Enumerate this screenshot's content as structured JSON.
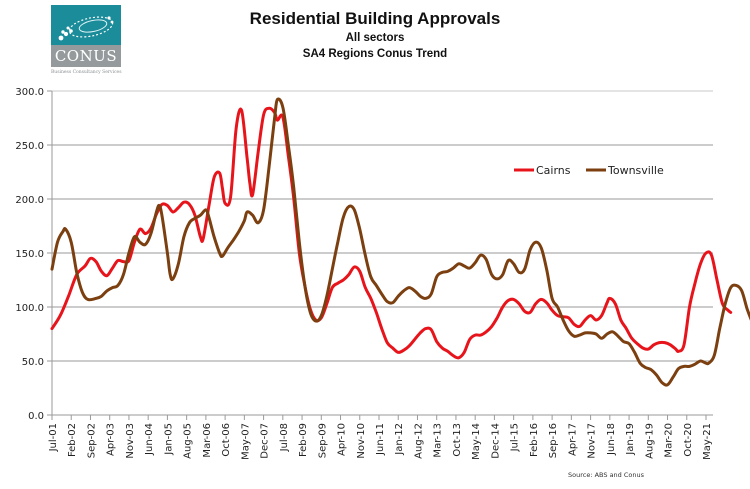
{
  "logo": {
    "word": "CONUS",
    "tagline": "Business Consultancy Services",
    "colors": {
      "top": "#1b8c9a",
      "bottom": "#959a9c"
    }
  },
  "chart_data": {
    "type": "line",
    "title": "Residential Building Approvals",
    "subtitles": [
      "All sectors",
      "SA4 Regions Conus Trend"
    ],
    "xlabel": "",
    "ylabel": "",
    "ylim": [
      0,
      300
    ],
    "yticks": [
      "0.0",
      "50.0",
      "100.0",
      "150.0",
      "200.0",
      "250.0",
      "300.0"
    ],
    "ytick_values": [
      0,
      50,
      100,
      150,
      200,
      250,
      300
    ],
    "xtick_labels": [
      "Jul-01",
      "Feb-02",
      "Sep-02",
      "Apr-03",
      "Nov-03",
      "Jun-04",
      "Jan-05",
      "Aug-05",
      "Mar-06",
      "Oct-06",
      "May-07",
      "Dec-07",
      "Jul-08",
      "Feb-09",
      "Sep-09",
      "Apr-10",
      "Nov-10",
      "Jun-11",
      "Jan-12",
      "Aug-12",
      "Mar-13",
      "Oct-13",
      "May-14",
      "Dec-14",
      "Jul-15",
      "Feb-16",
      "Sep-16",
      "Apr-17",
      "Nov-17",
      "Jun-18",
      "Jan-19",
      "Aug-19",
      "Mar-20",
      "Oct-20",
      "May-21"
    ],
    "x_unit": "months since Jul-01",
    "xlim": [
      0,
      240
    ],
    "grid": "horizontal",
    "legend_position": "top-right",
    "source": "Source: ABS and Conus",
    "series": [
      {
        "name": "Cairns",
        "color": "#e8141b",
        "points": [
          [
            0,
            80
          ],
          [
            3,
            92
          ],
          [
            6,
            110
          ],
          [
            9,
            130
          ],
          [
            12,
            138
          ],
          [
            14,
            145
          ],
          [
            16,
            142
          ],
          [
            18,
            133
          ],
          [
            20,
            129
          ],
          [
            22,
            136
          ],
          [
            24,
            143
          ],
          [
            26,
            142
          ],
          [
            28,
            143
          ],
          [
            30,
            160
          ],
          [
            32,
            172
          ],
          [
            34,
            168
          ],
          [
            36,
            173
          ],
          [
            38,
            186
          ],
          [
            40,
            195
          ],
          [
            42,
            194
          ],
          [
            44,
            188
          ],
          [
            46,
            192
          ],
          [
            48,
            197
          ],
          [
            50,
            195
          ],
          [
            52,
            185
          ],
          [
            54,
            165
          ],
          [
            55,
            163
          ],
          [
            57,
            192
          ],
          [
            59,
            220
          ],
          [
            61,
            224
          ],
          [
            62,
            210
          ],
          [
            63,
            196
          ],
          [
            65,
            202
          ],
          [
            67,
            265
          ],
          [
            69,
            282
          ],
          [
            71,
            238
          ],
          [
            72,
            215
          ],
          [
            73,
            204
          ],
          [
            75,
            243
          ],
          [
            77,
            278
          ],
          [
            79,
            284
          ],
          [
            81,
            280
          ],
          [
            82,
            273
          ],
          [
            84,
            276
          ],
          [
            86,
            240
          ],
          [
            88,
            200
          ],
          [
            90,
            150
          ],
          [
            92,
            120
          ],
          [
            94,
            98
          ],
          [
            96,
            88
          ],
          [
            98,
            90
          ],
          [
            100,
            103
          ],
          [
            102,
            118
          ],
          [
            104,
            122
          ],
          [
            106,
            125
          ],
          [
            108,
            130
          ],
          [
            110,
            137
          ],
          [
            112,
            133
          ],
          [
            114,
            118
          ],
          [
            116,
            108
          ],
          [
            118,
            95
          ],
          [
            120,
            80
          ],
          [
            122,
            67
          ],
          [
            124,
            62
          ],
          [
            126,
            58
          ],
          [
            128,
            60
          ],
          [
            130,
            64
          ],
          [
            132,
            70
          ],
          [
            134,
            76
          ],
          [
            136,
            80
          ],
          [
            138,
            79
          ],
          [
            140,
            68
          ],
          [
            142,
            62
          ],
          [
            144,
            59
          ],
          [
            146,
            55
          ],
          [
            148,
            53
          ],
          [
            150,
            58
          ],
          [
            152,
            70
          ],
          [
            154,
            74
          ],
          [
            156,
            74
          ],
          [
            158,
            77
          ],
          [
            160,
            82
          ],
          [
            162,
            90
          ],
          [
            164,
            100
          ],
          [
            166,
            106
          ],
          [
            168,
            107
          ],
          [
            170,
            103
          ],
          [
            172,
            96
          ],
          [
            174,
            95
          ],
          [
            176,
            103
          ],
          [
            178,
            107
          ],
          [
            180,
            104
          ],
          [
            182,
            97
          ],
          [
            184,
            92
          ],
          [
            186,
            91
          ],
          [
            188,
            90
          ],
          [
            190,
            84
          ],
          [
            192,
            82
          ],
          [
            194,
            88
          ],
          [
            196,
            92
          ],
          [
            198,
            88
          ],
          [
            200,
            92
          ],
          [
            202,
            104
          ],
          [
            203,
            108
          ],
          [
            205,
            103
          ],
          [
            207,
            88
          ],
          [
            209,
            80
          ],
          [
            211,
            71
          ],
          [
            213,
            66
          ],
          [
            215,
            62
          ],
          [
            217,
            61
          ],
          [
            219,
            65
          ],
          [
            221,
            67
          ],
          [
            223,
            67
          ],
          [
            225,
            65
          ],
          [
            227,
            61
          ],
          [
            228,
            59
          ],
          [
            230,
            65
          ],
          [
            232,
            100
          ],
          [
            234,
            122
          ],
          [
            236,
            140
          ],
          [
            238,
            150
          ],
          [
            240,
            148
          ],
          [
            242,
            125
          ],
          [
            244,
            103
          ],
          [
            246,
            97
          ],
          [
            247,
            95
          ]
        ]
      },
      {
        "name": "Townsville",
        "color": "#7b3f10",
        "points": [
          [
            0,
            135
          ],
          [
            2,
            160
          ],
          [
            4,
            170
          ],
          [
            5,
            172
          ],
          [
            7,
            160
          ],
          [
            9,
            132
          ],
          [
            11,
            114
          ],
          [
            13,
            107
          ],
          [
            16,
            108
          ],
          [
            18,
            110
          ],
          [
            20,
            115
          ],
          [
            22,
            118
          ],
          [
            24,
            120
          ],
          [
            26,
            130
          ],
          [
            28,
            150
          ],
          [
            30,
            165
          ],
          [
            32,
            160
          ],
          [
            34,
            158
          ],
          [
            36,
            168
          ],
          [
            38,
            188
          ],
          [
            39,
            194
          ],
          [
            40,
            185
          ],
          [
            42,
            150
          ],
          [
            43,
            130
          ],
          [
            44,
            126
          ],
          [
            46,
            140
          ],
          [
            48,
            165
          ],
          [
            50,
            178
          ],
          [
            52,
            182
          ],
          [
            54,
            185
          ],
          [
            56,
            190
          ],
          [
            57,
            184
          ],
          [
            59,
            165
          ],
          [
            61,
            150
          ],
          [
            62,
            147
          ],
          [
            64,
            155
          ],
          [
            66,
            162
          ],
          [
            68,
            170
          ],
          [
            70,
            180
          ],
          [
            71,
            188
          ],
          [
            73,
            185
          ],
          [
            75,
            178
          ],
          [
            77,
            190
          ],
          [
            79,
            230
          ],
          [
            81,
            275
          ],
          [
            82,
            292
          ],
          [
            84,
            285
          ],
          [
            86,
            250
          ],
          [
            88,
            210
          ],
          [
            90,
            160
          ],
          [
            92,
            120
          ],
          [
            94,
            95
          ],
          [
            96,
            87
          ],
          [
            98,
            92
          ],
          [
            100,
            110
          ],
          [
            102,
            135
          ],
          [
            104,
            160
          ],
          [
            106,
            183
          ],
          [
            108,
            193
          ],
          [
            110,
            190
          ],
          [
            112,
            172
          ],
          [
            114,
            148
          ],
          [
            116,
            128
          ],
          [
            118,
            120
          ],
          [
            120,
            112
          ],
          [
            122,
            105
          ],
          [
            124,
            104
          ],
          [
            126,
            110
          ],
          [
            128,
            115
          ],
          [
            130,
            118
          ],
          [
            132,
            115
          ],
          [
            134,
            110
          ],
          [
            136,
            108
          ],
          [
            138,
            112
          ],
          [
            140,
            128
          ],
          [
            142,
            132
          ],
          [
            144,
            133
          ],
          [
            146,
            136
          ],
          [
            148,
            140
          ],
          [
            150,
            138
          ],
          [
            152,
            136
          ],
          [
            154,
            141
          ],
          [
            156,
            148
          ],
          [
            158,
            144
          ],
          [
            160,
            130
          ],
          [
            162,
            126
          ],
          [
            164,
            130
          ],
          [
            166,
            143
          ],
          [
            168,
            140
          ],
          [
            170,
            132
          ],
          [
            172,
            135
          ],
          [
            174,
            153
          ],
          [
            176,
            160
          ],
          [
            178,
            155
          ],
          [
            180,
            135
          ],
          [
            182,
            108
          ],
          [
            184,
            100
          ],
          [
            186,
            88
          ],
          [
            188,
            78
          ],
          [
            190,
            73
          ],
          [
            192,
            74
          ],
          [
            194,
            76
          ],
          [
            196,
            76
          ],
          [
            198,
            75
          ],
          [
            200,
            71
          ],
          [
            202,
            75
          ],
          [
            204,
            77
          ],
          [
            206,
            73
          ],
          [
            208,
            68
          ],
          [
            210,
            66
          ],
          [
            212,
            58
          ],
          [
            214,
            48
          ],
          [
            216,
            44
          ],
          [
            218,
            42
          ],
          [
            220,
            37
          ],
          [
            222,
            30
          ],
          [
            224,
            28
          ],
          [
            226,
            35
          ],
          [
            228,
            43
          ],
          [
            230,
            45
          ],
          [
            232,
            45
          ],
          [
            234,
            47
          ],
          [
            236,
            50
          ],
          [
            238,
            48
          ],
          [
            239,
            48
          ],
          [
            241,
            55
          ],
          [
            243,
            80
          ],
          [
            245,
            103
          ],
          [
            247,
            118
          ],
          [
            249,
            120
          ],
          [
            251,
            115
          ],
          [
            253,
            98
          ],
          [
            255,
            85
          ],
          [
            256,
            80
          ]
        ]
      }
    ]
  }
}
